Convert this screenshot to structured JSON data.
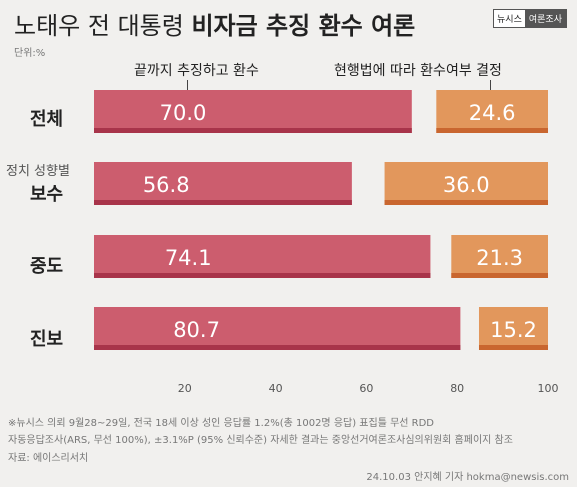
{
  "header": {
    "title_plain": "노태우 전 대통령 ",
    "title_bold": "비자금 추징 환수 여론",
    "badge_left": "뉴시스",
    "badge_right": "여론조사",
    "unit": "단위:%"
  },
  "legend": {
    "left": "끝까지 추징하고 환수",
    "right": "현행법에 따라 환수여부 결정"
  },
  "group_label": "정치 성향별",
  "colors": {
    "series1": "#cc5d6e",
    "series1_dark": "#a8344a",
    "series2": "#e2975c",
    "series2_dark": "#c9662f",
    "background": "#f1f0ee"
  },
  "chart_data": {
    "type": "bar",
    "orientation": "horizontal",
    "stacked": true,
    "categories": [
      "전체",
      "보수",
      "중도",
      "진보"
    ],
    "series": [
      {
        "name": "끝까지 추징하고 환수",
        "values": [
          70.0,
          56.8,
          74.1,
          80.7
        ]
      },
      {
        "name": "현행법에 따라 환수여부 결정",
        "values": [
          24.6,
          36.0,
          21.3,
          15.2
        ]
      }
    ],
    "xlim": [
      0,
      100
    ],
    "xticks": [
      20,
      40,
      60,
      80,
      100
    ]
  },
  "footnotes": [
    "※뉴시스 의뢰 9월28~29일, 전국 18세 이상 성인 응답률 1.2%(총 1002명 응답) 표집틀 무선 RDD",
    "자동응답조사(ARS, 무선 100%), ±3.1%P (95% 신뢰수준) 자세한 결과는 중앙선거여론조사심의위원회 홈페이지 참조",
    "자료: 에이스리서치"
  ],
  "credit": "24.10.03 안지혜 기자 hokma@newsis.com"
}
